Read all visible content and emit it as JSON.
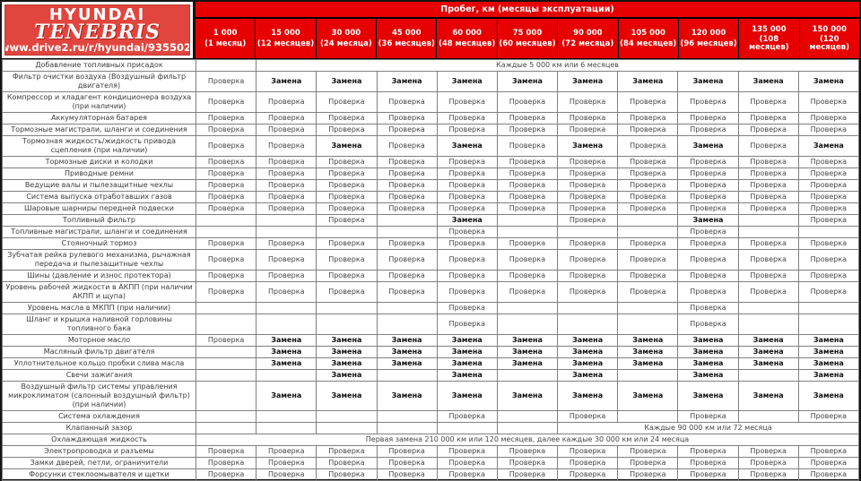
{
  "logo": {
    "brand": "HYUNDAI",
    "name": "TENEBRIS",
    "url": "www.drive2.ru/r/hyundai/935502/"
  },
  "header": {
    "title": "Пробег, км (месяцы эксплуатации)",
    "columns": [
      {
        "km": "1 000",
        "months": "(1 месяц)"
      },
      {
        "km": "15 000",
        "months": "(12 месяцев)"
      },
      {
        "km": "30 000",
        "months": "(24 месяца)"
      },
      {
        "km": "45 000",
        "months": "(36 месяцев)"
      },
      {
        "km": "60 000",
        "months": "(48 месяцев)"
      },
      {
        "km": "75 000",
        "months": "(60 месяцев)"
      },
      {
        "km": "90 000",
        "months": "(72 месяца)"
      },
      {
        "km": "105 000",
        "months": "(84 месяцев)"
      },
      {
        "km": "120 000",
        "months": "(96 месяцев)"
      },
      {
        "km": "135 000",
        "months": "(108 месяцев)"
      },
      {
        "km": "150 000",
        "months": "(120 месяцев)"
      }
    ]
  },
  "legend": {
    "P": "Проверка",
    "Z": "Замена"
  },
  "rows": [
    {
      "label": "Добавление топливных присадок",
      "cells": [
        "",
        {
          "span": 10,
          "text": "Каждые 5 000 км или 6 месяцев"
        }
      ]
    },
    {
      "label": "Фильтр очистки воздуха (Воздушный фильтр двигателя)",
      "cells": [
        "P",
        "Z",
        "Z",
        "Z",
        "Z",
        "Z",
        "Z",
        "Z",
        "Z",
        "Z",
        "Z"
      ]
    },
    {
      "label": "Компрессор и хладагент кондиционера воздуха (при наличии)",
      "cells": [
        "P",
        "P",
        "P",
        "P",
        "P",
        "P",
        "P",
        "P",
        "P",
        "P",
        "P"
      ]
    },
    {
      "label": "Аккумуляторная батарея",
      "cells": [
        "P",
        "P",
        "P",
        "P",
        "P",
        "P",
        "P",
        "P",
        "P",
        "P",
        "P"
      ]
    },
    {
      "label": "Тормозные магистрали, шланги и соединения",
      "cells": [
        "P",
        "P",
        "P",
        "P",
        "P",
        "P",
        "P",
        "P",
        "P",
        "P",
        "P"
      ]
    },
    {
      "label": "Тормозная жидкость/жидкость привода сцепления (при наличии)",
      "cells": [
        "P",
        "P",
        "Z",
        "P",
        "Z",
        "P",
        "Z",
        "P",
        "Z",
        "P",
        "Z"
      ]
    },
    {
      "label": "Тормозные диски и колодки",
      "cells": [
        "P",
        "P",
        "P",
        "P",
        "P",
        "P",
        "P",
        "P",
        "P",
        "P",
        "P"
      ]
    },
    {
      "label": "Приводные ремни",
      "cells": [
        "P",
        "P",
        "P",
        "P",
        "P",
        "P",
        "P",
        "P",
        "P",
        "P",
        "P"
      ]
    },
    {
      "label": "Ведущие валы и пылезащитные чехлы",
      "cells": [
        "P",
        "P",
        "P",
        "P",
        "P",
        "P",
        "P",
        "P",
        "P",
        "P",
        "P"
      ]
    },
    {
      "label": "Система выпуска отработавших газов",
      "cells": [
        "P",
        "P",
        "P",
        "P",
        "P",
        "P",
        "P",
        "P",
        "P",
        "P",
        "P"
      ]
    },
    {
      "label": "Шаровые шарниры передней подвески",
      "cells": [
        "P",
        "P",
        "P",
        "P",
        "P",
        "P",
        "P",
        "P",
        "P",
        "P",
        "P"
      ]
    },
    {
      "label": "Топливный фильтр",
      "cells": [
        "",
        "",
        "P",
        "",
        "Z",
        "",
        "P",
        "",
        "Z",
        "",
        "P"
      ]
    },
    {
      "label": "Топливные магистрали, шланги и соединения",
      "cells": [
        "",
        "",
        "",
        "",
        "P",
        "",
        "",
        "",
        "P",
        "",
        ""
      ]
    },
    {
      "label": "Стояночный тормоз",
      "cells": [
        "P",
        "P",
        "P",
        "P",
        "P",
        "P",
        "P",
        "P",
        "P",
        "P",
        "P"
      ]
    },
    {
      "label": "Зубчатая рейка рулевого механизма, рычажная передача и пылезащитные чехлы",
      "cells": [
        "P",
        "P",
        "P",
        "P",
        "P",
        "P",
        "P",
        "P",
        "P",
        "P",
        "P"
      ]
    },
    {
      "label": "Шины (давление и износ протектора)",
      "cells": [
        "P",
        "P",
        "P",
        "P",
        "P",
        "P",
        "P",
        "P",
        "P",
        "P",
        "P"
      ]
    },
    {
      "label": "Уровень рабочей жидкости в АКПП (при наличии АКПП и щупа)",
      "cells": [
        "P",
        "P",
        "P",
        "P",
        "P",
        "P",
        "P",
        "P",
        "P",
        "P",
        "P"
      ]
    },
    {
      "label": "Уровень масла в МКПП (при наличии)",
      "cells": [
        "",
        "",
        "",
        "",
        "P",
        "",
        "",
        "",
        "P",
        "",
        ""
      ]
    },
    {
      "label": "Шланг и крышка наливной горловины топливного бака",
      "cells": [
        "",
        "",
        "",
        "",
        "P",
        "",
        "",
        "",
        "P",
        "",
        ""
      ]
    },
    {
      "label": "Моторное масло",
      "cells": [
        "P",
        "Z",
        "Z",
        "Z",
        "Z",
        "Z",
        "Z",
        "Z",
        "Z",
        "Z",
        "Z"
      ]
    },
    {
      "label": "Масляный фильтр двигателя",
      "cells": [
        "",
        "Z",
        "Z",
        "Z",
        "Z",
        "Z",
        "Z",
        "Z",
        "Z",
        "Z",
        "Z"
      ]
    },
    {
      "label": "Уплотнительное кольцо пробки слива масла",
      "cells": [
        "",
        "Z",
        "Z",
        "Z",
        "Z",
        "Z",
        "Z",
        "Z",
        "Z",
        "Z",
        "Z"
      ]
    },
    {
      "label": "Свечи зажигания",
      "cells": [
        "",
        "",
        "Z",
        "",
        "Z",
        "",
        "Z",
        "",
        "Z",
        "",
        "Z"
      ]
    },
    {
      "label": "Воздушный фильтр системы управления микроклиматом (салонный воздушный фильтр) (при наличии)",
      "cells": [
        "",
        "Z",
        "Z",
        "Z",
        "Z",
        "Z",
        "Z",
        "Z",
        "Z",
        "Z",
        "Z"
      ]
    },
    {
      "label": "Система охлаждения",
      "cells": [
        "",
        "",
        "",
        "",
        "P",
        "",
        "P",
        "",
        "P",
        "",
        "P"
      ]
    },
    {
      "label": "Клапанный зазор",
      "cells": [
        "",
        "",
        "",
        "",
        "",
        "",
        {
          "span": 5,
          "text": "Каждые 90 000 км или 72 месяца"
        }
      ]
    },
    {
      "label": "Охлаждающая жидкость",
      "cells": [
        {
          "span": 11,
          "text": "Первая замена 210 000 км или 120 месяцев, далее каждые 30 000 км или 24 месяца"
        }
      ]
    },
    {
      "label": "Электропроводка и разъемы",
      "cells": [
        "P",
        "P",
        "P",
        "P",
        "P",
        "P",
        "P",
        "P",
        "P",
        "P",
        "P"
      ]
    },
    {
      "label": "Замки дверей, петли, ограничители",
      "cells": [
        "P",
        "P",
        "P",
        "P",
        "P",
        "P",
        "P",
        "P",
        "P",
        "P",
        "P"
      ]
    },
    {
      "label": "Форсунки стеклоомывателя и щетки",
      "cells": [
        "P",
        "P",
        "P",
        "P",
        "P",
        "P",
        "P",
        "P",
        "P",
        "P",
        "P"
      ]
    }
  ],
  "colors": {
    "header_red": "#e60000",
    "logo_red": "#e2453d",
    "logo_border": "#b93b33",
    "frame": "#141414",
    "grid_line": "#808080",
    "check_text": "#474747",
    "replace_text": "#101010",
    "label_text": "#3c3c3c"
  }
}
